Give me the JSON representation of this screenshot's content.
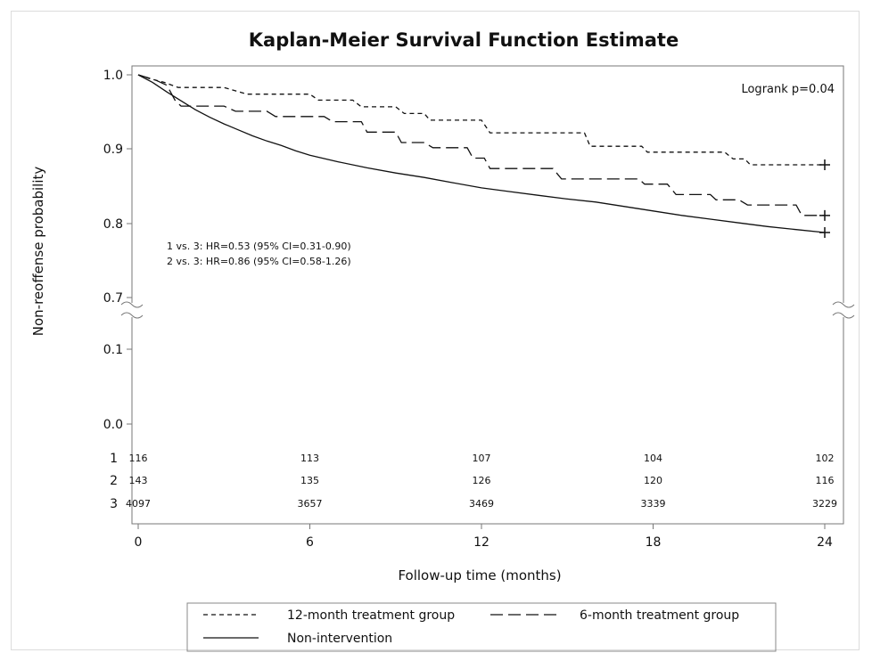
{
  "chart_data": {
    "type": "line",
    "title": "Kaplan-Meier Survival Function Estimate",
    "xlabel": "Follow-up time (months)",
    "ylabel": "Non-reoffense probability",
    "xlim": [
      0,
      24
    ],
    "x_ticks": [
      "0",
      "6",
      "12",
      "18",
      "24"
    ],
    "y_ticks": [
      "1.0",
      "0.9",
      "0.8",
      "0.7",
      "0.1",
      "0.0"
    ],
    "y_axis_break": "between 0.7 and 0.1",
    "annotation_logrank": "Logrank p=0.04",
    "annotation_hr": [
      "1 vs. 3: HR=0.53 (95% CI=0.31-0.90)",
      "2 vs. 3: HR=0.86 (95% CI=0.58-1.26)"
    ],
    "legend_placement": "bottom",
    "series": [
      {
        "name": "12-month treatment group",
        "style": "short-dash",
        "points": [
          [
            0,
            1.0
          ],
          [
            0.4,
            0.995
          ],
          [
            0.9,
            0.99
          ],
          [
            1.4,
            0.983
          ],
          [
            3.0,
            0.983
          ],
          [
            3.8,
            0.974
          ],
          [
            6.0,
            0.974
          ],
          [
            6.3,
            0.966
          ],
          [
            7.5,
            0.966
          ],
          [
            7.8,
            0.957
          ],
          [
            9.0,
            0.957
          ],
          [
            9.3,
            0.948
          ],
          [
            10.0,
            0.948
          ],
          [
            10.2,
            0.939
          ],
          [
            12.0,
            0.939
          ],
          [
            12.3,
            0.922
          ],
          [
            15.6,
            0.922
          ],
          [
            15.8,
            0.904
          ],
          [
            17.6,
            0.904
          ],
          [
            17.8,
            0.896
          ],
          [
            20.5,
            0.896
          ],
          [
            20.8,
            0.887
          ],
          [
            21.2,
            0.887
          ],
          [
            21.4,
            0.879
          ],
          [
            24,
            0.879
          ]
        ],
        "censor_end": 0.879
      },
      {
        "name": "6-month treatment group",
        "style": "long-dash",
        "points": [
          [
            0,
            1.0
          ],
          [
            0.6,
            0.993
          ],
          [
            1.0,
            0.986
          ],
          [
            1.3,
            0.965
          ],
          [
            1.5,
            0.958
          ],
          [
            3.0,
            0.958
          ],
          [
            3.4,
            0.951
          ],
          [
            4.5,
            0.951
          ],
          [
            4.8,
            0.944
          ],
          [
            6.5,
            0.944
          ],
          [
            6.8,
            0.937
          ],
          [
            7.8,
            0.937
          ],
          [
            8.0,
            0.923
          ],
          [
            9.0,
            0.923
          ],
          [
            9.2,
            0.909
          ],
          [
            10.0,
            0.909
          ],
          [
            10.3,
            0.902
          ],
          [
            11.5,
            0.902
          ],
          [
            11.7,
            0.888
          ],
          [
            12.1,
            0.888
          ],
          [
            12.3,
            0.874
          ],
          [
            14.5,
            0.874
          ],
          [
            14.8,
            0.86
          ],
          [
            17.5,
            0.86
          ],
          [
            17.7,
            0.853
          ],
          [
            18.5,
            0.853
          ],
          [
            18.8,
            0.839
          ],
          [
            20.0,
            0.839
          ],
          [
            20.2,
            0.832
          ],
          [
            21.0,
            0.832
          ],
          [
            21.3,
            0.825
          ],
          [
            23.0,
            0.825
          ],
          [
            23.2,
            0.811
          ],
          [
            24,
            0.811
          ]
        ],
        "censor_end": 0.811
      },
      {
        "name": "Non-intervention",
        "style": "solid",
        "points": [
          [
            0,
            1.0
          ],
          [
            0.5,
            0.99
          ],
          [
            1,
            0.977
          ],
          [
            1.5,
            0.965
          ],
          [
            2,
            0.953
          ],
          [
            2.5,
            0.943
          ],
          [
            3,
            0.934
          ],
          [
            3.5,
            0.926
          ],
          [
            4,
            0.918
          ],
          [
            4.5,
            0.911
          ],
          [
            5,
            0.905
          ],
          [
            5.5,
            0.898
          ],
          [
            6,
            0.892
          ],
          [
            7,
            0.883
          ],
          [
            8,
            0.875
          ],
          [
            9,
            0.868
          ],
          [
            10,
            0.862
          ],
          [
            11,
            0.855
          ],
          [
            12,
            0.848
          ],
          [
            13,
            0.843
          ],
          [
            14,
            0.838
          ],
          [
            15,
            0.833
          ],
          [
            16,
            0.829
          ],
          [
            17,
            0.823
          ],
          [
            18,
            0.817
          ],
          [
            19,
            0.811
          ],
          [
            20,
            0.806
          ],
          [
            21,
            0.801
          ],
          [
            22,
            0.796
          ],
          [
            23,
            0.792
          ],
          [
            24,
            0.788
          ]
        ],
        "censor_end": 0.788
      }
    ],
    "risk_table": {
      "x": [
        0,
        6,
        12,
        18,
        24
      ],
      "rows": [
        {
          "label": "1",
          "values": [
            "116",
            "113",
            "107",
            "104",
            "102"
          ]
        },
        {
          "label": "2",
          "values": [
            "143",
            "135",
            "126",
            "120",
            "116"
          ]
        },
        {
          "label": "3",
          "values": [
            "4097",
            "3657",
            "3469",
            "3339",
            "3229"
          ]
        }
      ]
    }
  }
}
